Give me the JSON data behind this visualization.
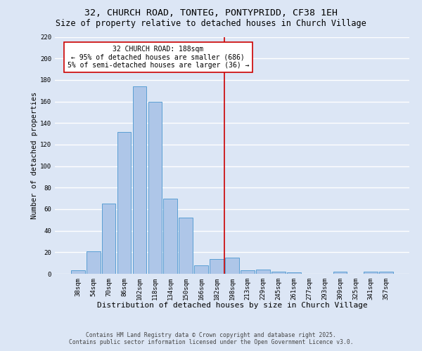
{
  "title_line1": "32, CHURCH ROAD, TONTEG, PONTYPRIDD, CF38 1EH",
  "title_line2": "Size of property relative to detached houses in Church Village",
  "xlabel": "Distribution of detached houses by size in Church Village",
  "ylabel": "Number of detached properties",
  "categories": [
    "38sqm",
    "54sqm",
    "70sqm",
    "86sqm",
    "102sqm",
    "118sqm",
    "134sqm",
    "150sqm",
    "166sqm",
    "182sqm",
    "198sqm",
    "213sqm",
    "229sqm",
    "245sqm",
    "261sqm",
    "277sqm",
    "293sqm",
    "309sqm",
    "325sqm",
    "341sqm",
    "357sqm"
  ],
  "values": [
    3,
    21,
    65,
    132,
    174,
    160,
    70,
    52,
    8,
    14,
    15,
    3,
    4,
    2,
    1,
    0,
    0,
    2,
    0,
    2,
    2
  ],
  "bar_color": "#aec6e8",
  "bar_edge_color": "#5a9fd4",
  "vline_x_index": 9.5,
  "vline_color": "#cc0000",
  "annotation_text": "32 CHURCH ROAD: 188sqm\n← 95% of detached houses are smaller (686)\n5% of semi-detached houses are larger (36) →",
  "annotation_box_color": "#ffffff",
  "annotation_box_edge": "#cc0000",
  "ylim": [
    0,
    220
  ],
  "yticks": [
    0,
    20,
    40,
    60,
    80,
    100,
    120,
    140,
    160,
    180,
    200,
    220
  ],
  "background_color": "#dce6f5",
  "grid_color": "#ffffff",
  "footer_line1": "Contains HM Land Registry data © Crown copyright and database right 2025.",
  "footer_line2": "Contains public sector information licensed under the Open Government Licence v3.0.",
  "title_fontsize": 9.5,
  "subtitle_fontsize": 8.5,
  "xlabel_fontsize": 8,
  "ylabel_fontsize": 7.5,
  "tick_fontsize": 6.5,
  "annot_fontsize": 7,
  "footer_fontsize": 5.8
}
